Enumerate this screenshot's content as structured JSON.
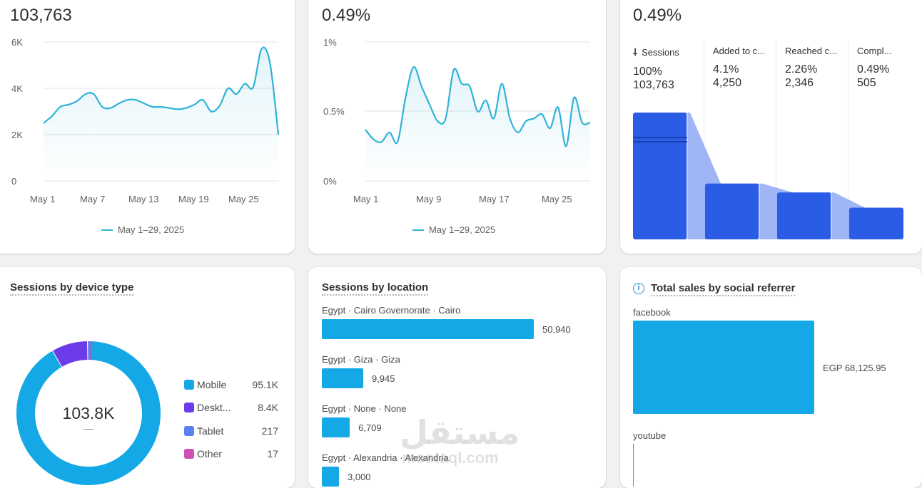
{
  "cards": {
    "sessions": {
      "value": "103,763",
      "y_ticks": [
        "6K",
        "4K",
        "2K",
        "0"
      ],
      "x_ticks": [
        "May 1",
        "May 7",
        "May 13",
        "May 19",
        "May 25"
      ],
      "legend": "May 1–29, 2025",
      "color": "#2fb3d8"
    },
    "conversion": {
      "value": "0.49%",
      "y_ticks": [
        "1%",
        "0.5%",
        "0%"
      ],
      "x_ticks": [
        "May 1",
        "May 9",
        "May 17",
        "May 25"
      ],
      "legend": "May 1–29, 2025",
      "color": "#2fb3d8"
    },
    "funnel": {
      "value": "0.49%",
      "stages": [
        {
          "label": "Sessions",
          "percent": "100%",
          "count": "103,763",
          "fraction": 1.0
        },
        {
          "label": "Added to c...",
          "percent": "4.1%",
          "count": "4,250",
          "fraction": 0.44
        },
        {
          "label": "Reached c...",
          "percent": "2.26%",
          "count": "2,346",
          "fraction": 0.37
        },
        {
          "label": "Compl...",
          "percent": "0.49%",
          "count": "505",
          "fraction": 0.25
        }
      ],
      "bar_color": "#2b5ce6"
    },
    "device": {
      "title": "Sessions by device type",
      "total": "103.8K",
      "sub": "—",
      "items": [
        {
          "name": "Mobile",
          "value": "95.1K",
          "color": "#14a9e6",
          "amount": 95100
        },
        {
          "name": "Deskt...",
          "value": "8.4K",
          "color": "#6c3ce9",
          "amount": 8400
        },
        {
          "name": "Tablet",
          "value": "217",
          "color": "#5b7ff0",
          "amount": 217
        },
        {
          "name": "Other",
          "value": "17",
          "color": "#d04fb4",
          "amount": 17
        }
      ]
    },
    "location": {
      "title": "Sessions by location",
      "items": [
        {
          "label": "Egypt · Cairo Governorate · Cairo",
          "value": "50,940",
          "amount": 50940
        },
        {
          "label": "Egypt · Giza · Giza",
          "value": "9,945",
          "amount": 9945
        },
        {
          "label": "Egypt · None · None",
          "value": "6,709",
          "amount": 6709
        },
        {
          "label": "Egypt · Alexandria · Alexandria",
          "value": "3,000",
          "amount": 3000
        }
      ]
    },
    "social": {
      "title": "Total sales by social referrer",
      "items": [
        {
          "label": "facebook",
          "value": "EGP 68,125.95",
          "amount": 68125.95
        },
        {
          "label": "youtube",
          "value": "",
          "amount": 0
        }
      ]
    }
  },
  "chart_data": [
    {
      "type": "line",
      "x": [
        "May 1",
        "May 2",
        "May 3",
        "May 4",
        "May 5",
        "May 6",
        "May 7",
        "May 8",
        "May 9",
        "May 10",
        "May 11",
        "May 12",
        "May 13",
        "May 14",
        "May 15",
        "May 16",
        "May 17",
        "May 18",
        "May 19",
        "May 20",
        "May 21",
        "May 22",
        "May 23",
        "May 24",
        "May 25",
        "May 26",
        "May 27",
        "May 28",
        "May 29"
      ],
      "series": [
        {
          "name": "May 1–29, 2025",
          "values": [
            2500,
            2800,
            3200,
            3300,
            3450,
            3750,
            3750,
            3200,
            3150,
            3350,
            3500,
            3500,
            3350,
            3200,
            3200,
            3150,
            3100,
            3150,
            3300,
            3500,
            3000,
            3250,
            4000,
            3750,
            4200,
            4050,
            5700,
            5100,
            2000
          ]
        }
      ],
      "ylim": [
        0,
        6000
      ],
      "y_ticks": [
        "6K",
        "4K",
        "2K",
        "0"
      ],
      "x_ticks": [
        "May 1",
        "May 7",
        "May 13",
        "May 19",
        "May 25"
      ]
    },
    {
      "type": "line",
      "x": [
        "May 1",
        "May 2",
        "May 3",
        "May 4",
        "May 5",
        "May 6",
        "May 7",
        "May 8",
        "May 9",
        "May 10",
        "May 11",
        "May 12",
        "May 13",
        "May 14",
        "May 15",
        "May 16",
        "May 17",
        "May 18",
        "May 19",
        "May 20",
        "May 21",
        "May 22",
        "May 23",
        "May 24",
        "May 25",
        "May 26",
        "May 27",
        "May 28",
        "May 29"
      ],
      "series": [
        {
          "name": "May 1–29, 2025",
          "values": [
            0.37,
            0.3,
            0.28,
            0.35,
            0.28,
            0.6,
            0.82,
            0.68,
            0.55,
            0.43,
            0.45,
            0.8,
            0.7,
            0.68,
            0.5,
            0.58,
            0.45,
            0.7,
            0.45,
            0.35,
            0.43,
            0.45,
            0.48,
            0.38,
            0.53,
            0.25,
            0.6,
            0.42,
            0.42
          ]
        }
      ],
      "ylim": [
        0,
        1
      ],
      "y_ticks": [
        "1%",
        "0.5%",
        "0%"
      ],
      "x_ticks": [
        "May 1",
        "May 9",
        "May 17",
        "May 25"
      ]
    }
  ],
  "watermark": {
    "arabic": "مستقل",
    "latin": "mostaql.com"
  }
}
